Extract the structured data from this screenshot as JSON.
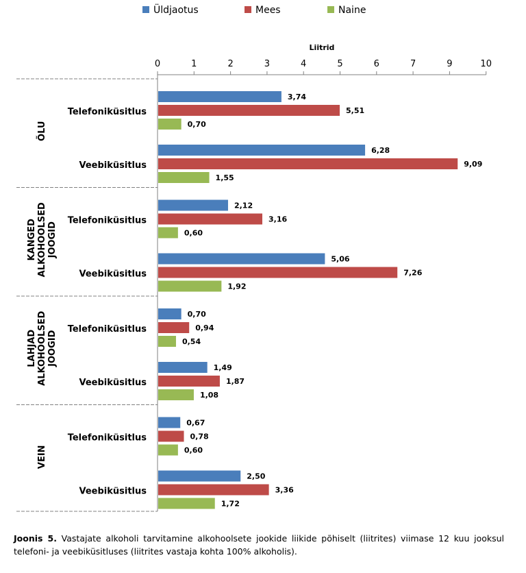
{
  "chart_data": {
    "type": "bar",
    "orientation": "horizontal",
    "xlabel": "Liitrid",
    "xlim": [
      0,
      10
    ],
    "ticks": [
      "0",
      "1",
      "2",
      "3",
      "4",
      "5",
      "6",
      "7",
      "9",
      "10"
    ],
    "legend_position": "top",
    "series": [
      {
        "name": "Üldjaotus",
        "color": "#4a7ebb"
      },
      {
        "name": "Mees",
        "color": "#be4b48"
      },
      {
        "name": "Naine",
        "color": "#98b954"
      }
    ],
    "groups": [
      {
        "label_lines": [
          "ÕLU"
        ],
        "rows": [
          {
            "label": "Telefoniküsitlus",
            "values": [
              3.74,
              5.51,
              0.7
            ],
            "labels": [
              "3,74",
              "5,51",
              "0,70"
            ]
          },
          {
            "label": "Veebiküsitlus",
            "values": [
              6.28,
              9.09,
              1.55
            ],
            "labels": [
              "6,28",
              "9,09",
              "1,55"
            ]
          }
        ]
      },
      {
        "label_lines": [
          "KANGED",
          "ALKOHOOLSED",
          "JOOGID"
        ],
        "rows": [
          {
            "label": "Telefoniküsitlus",
            "values": [
              2.12,
              3.16,
              0.6
            ],
            "labels": [
              "2,12",
              "3,16",
              "0,60"
            ]
          },
          {
            "label": "Veebiküsitlus",
            "values": [
              5.06,
              7.26,
              1.92
            ],
            "labels": [
              "5,06",
              "7,26",
              "1,92"
            ]
          }
        ]
      },
      {
        "label_lines": [
          "LAHJAD",
          "ALKOHOOLSED",
          "JOOGID"
        ],
        "rows": [
          {
            "label": "Telefoniküsitlus",
            "values": [
              0.7,
              0.94,
              0.54
            ],
            "labels": [
              "0,70",
              "0,94",
              "0,54"
            ]
          },
          {
            "label": "Veebiküsitlus",
            "values": [
              1.49,
              1.87,
              1.08
            ],
            "labels": [
              "1,49",
              "1,87",
              "1,08"
            ]
          }
        ]
      },
      {
        "label_lines": [
          "VEIN"
        ],
        "rows": [
          {
            "label": "Telefoniküsitlus",
            "values": [
              0.67,
              0.78,
              0.6
            ],
            "labels": [
              "0,67",
              "0,78",
              "0,60"
            ]
          },
          {
            "label": "Veebiküsitlus",
            "values": [
              2.5,
              3.36,
              1.72
            ],
            "labels": [
              "2,50",
              "3,36",
              "1,72"
            ]
          }
        ]
      }
    ]
  },
  "caption": {
    "label": "Joonis 5.",
    "text": " Vastajate alkoholi tarvitamine alkohoolsete jookide liikide põhiselt (liitrites) viimase 12 kuu jooksul telefoni- ja veebiküsitluses (liitrites vastaja kohta 100% alkoholis)."
  }
}
